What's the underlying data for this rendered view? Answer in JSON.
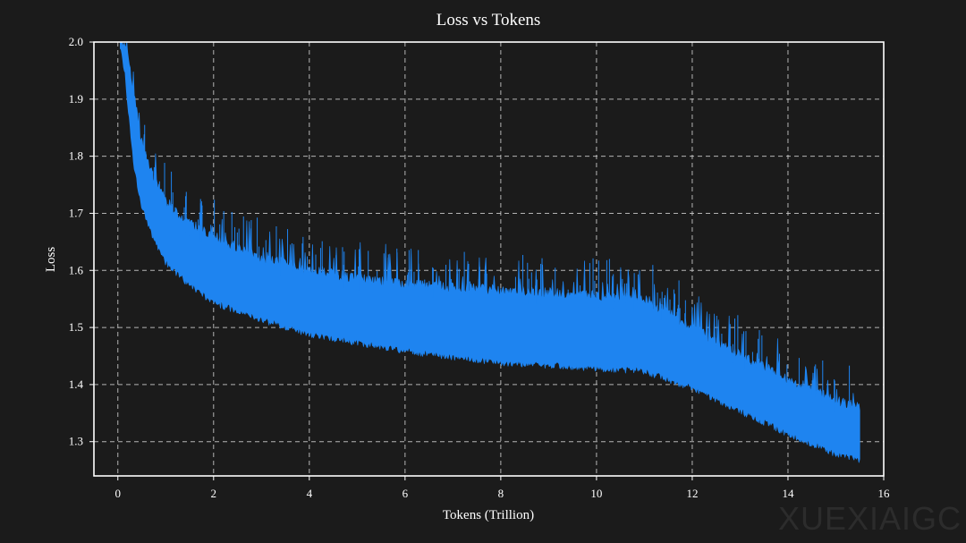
{
  "chart_data": {
    "type": "line",
    "title": "Loss vs Tokens",
    "xlabel": "Tokens (Trillion)",
    "ylabel": "Loss",
    "xlim": [
      -0.5,
      16
    ],
    "ylim": [
      1.24,
      2.0
    ],
    "xticks": [
      0,
      2,
      4,
      6,
      8,
      10,
      12,
      14,
      16
    ],
    "yticks": [
      1.3,
      1.4,
      1.5,
      1.6,
      1.7,
      1.8,
      1.9,
      2.0
    ],
    "xtick_labels": [
      "0",
      "2",
      "4",
      "6",
      "8",
      "10",
      "12",
      "14",
      "16"
    ],
    "ytick_labels": [
      "1.3",
      "1.4",
      "1.5",
      "1.6",
      "1.7",
      "1.8",
      "1.9",
      "2.0"
    ],
    "grid": true,
    "series": [
      {
        "name": "loss",
        "color": "#1e84f0",
        "band_description": "noisy per-step loss; lower and upper envelopes",
        "x": [
          0.05,
          0.15,
          0.25,
          0.35,
          0.5,
          0.75,
          1.0,
          1.5,
          2.0,
          3.0,
          4.0,
          5.0,
          6.0,
          7.0,
          8.0,
          9.0,
          10.0,
          11.0,
          12.0,
          13.0,
          14.0,
          15.0,
          15.5
        ],
        "lower": [
          2.0,
          1.95,
          1.86,
          1.78,
          1.72,
          1.66,
          1.62,
          1.58,
          1.55,
          1.52,
          1.495,
          1.48,
          1.465,
          1.455,
          1.445,
          1.44,
          1.435,
          1.43,
          1.4,
          1.36,
          1.32,
          1.285,
          1.275
        ],
        "upper": [
          2.0,
          2.0,
          1.95,
          1.9,
          1.82,
          1.76,
          1.72,
          1.68,
          1.66,
          1.62,
          1.6,
          1.585,
          1.575,
          1.57,
          1.565,
          1.56,
          1.555,
          1.55,
          1.5,
          1.45,
          1.41,
          1.37,
          1.36
        ]
      }
    ]
  },
  "watermark": "XUEXIAIGC"
}
